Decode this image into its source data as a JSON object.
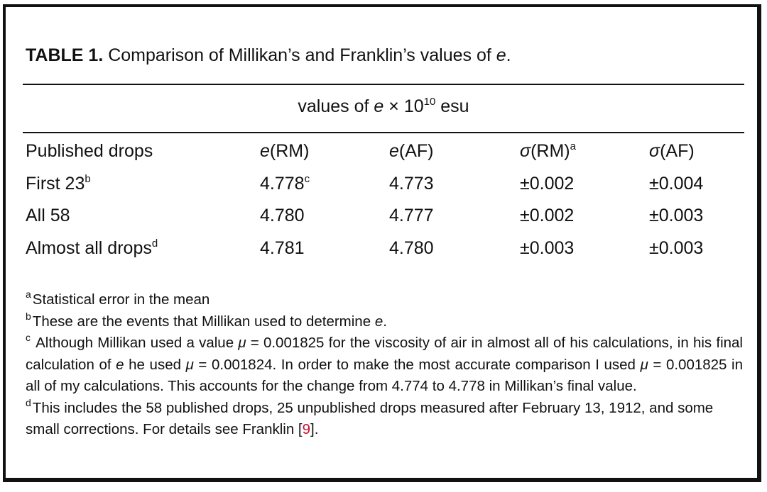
{
  "caption": {
    "label": "TABLE 1.",
    "text_before": " Comparison of Millikan’s and Franklin’s values of ",
    "text_var": "e",
    "text_after": "."
  },
  "super_header": {
    "prefix": "values of ",
    "var": "e",
    "times": " × 10",
    "exponent": "10",
    "unit": " esu"
  },
  "columns": {
    "col0": "Published drops",
    "col1_var": "e",
    "col1_rest": "(RM)",
    "col2_var": "e",
    "col2_rest": "(AF)",
    "col3_sigma": "σ",
    "col3_rest": "(RM)",
    "col3_sup": "a",
    "col4_sigma": "σ",
    "col4_rest": "(AF)"
  },
  "rows": [
    {
      "label": "First 23",
      "label_sup": "b",
      "e_rm": "4.778",
      "e_rm_sup": "c",
      "e_af": "4.773",
      "s_rm": "±0.002",
      "s_af": "±0.004"
    },
    {
      "label": "All 58",
      "label_sup": "",
      "e_rm": "4.780",
      "e_rm_sup": "",
      "e_af": "4.777",
      "s_rm": "±0.002",
      "s_af": "±0.003"
    },
    {
      "label": "Almost all drops",
      "label_sup": "d",
      "e_rm": "4.781",
      "e_rm_sup": "",
      "e_af": "4.780",
      "s_rm": "±0.003",
      "s_af": "±0.003"
    }
  ],
  "footnotes": {
    "a_mark": "a",
    "a_text": "Statistical error in the mean",
    "b_mark": "b",
    "b_text": "These are the events that Millikan used to determine ",
    "b_var": "e",
    "b_end": ".",
    "c_mark": "c",
    "c_text1": " Although Millikan used a value ",
    "c_mu1": "μ",
    "c_text2": " = 0.001825 for the viscosity of air in almost all of his calculations, in his final calculation of ",
    "c_var": "e",
    "c_text3": " he used ",
    "c_mu2": "μ",
    "c_text4": " = 0.001824. In order to make the most accurate comparison I used ",
    "c_mu3": "μ",
    "c_text5": " = 0.001825 in all of my calculations. This accounts for the change from 4.774 to 4.778 in Millikan’s final value.",
    "d_mark": "d",
    "d_text": "This includes the 58 published drops, 25 unpublished drops measured after February 13, 1912, and some small corrections. For details see Franklin [",
    "d_ref": "9",
    "d_end": "]."
  }
}
